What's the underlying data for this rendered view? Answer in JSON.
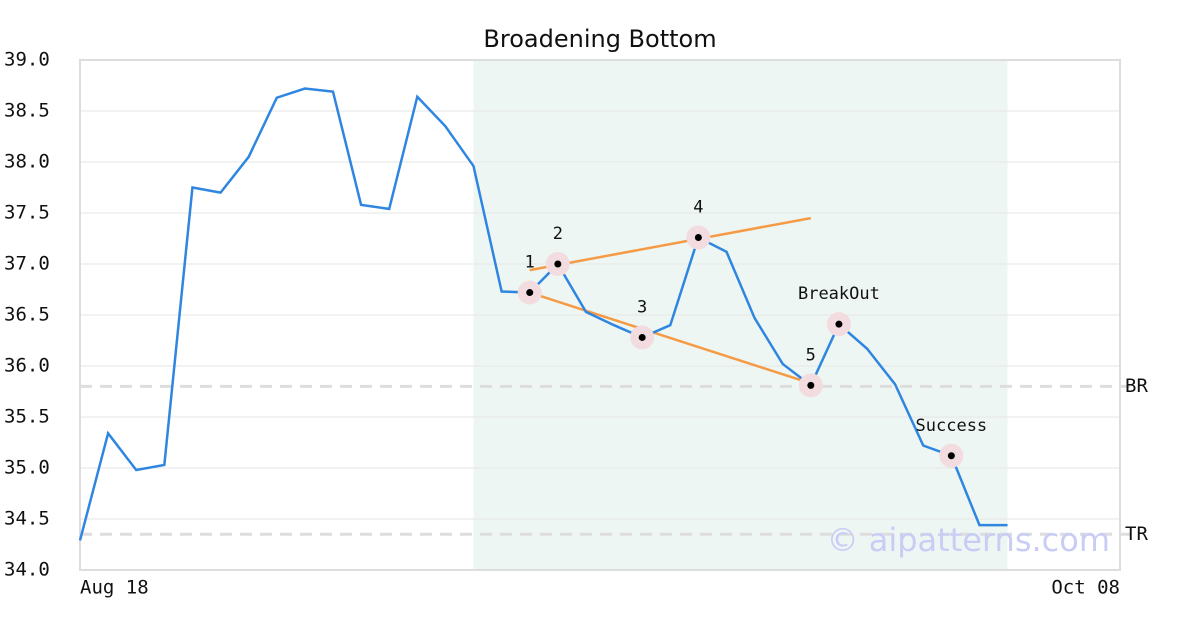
{
  "chart_data": {
    "type": "line",
    "title": "Broadening Bottom",
    "categories": [
      "Aug 18",
      null,
      null,
      null,
      null,
      null,
      null,
      null,
      null,
      null,
      null,
      null,
      null,
      null,
      null,
      null,
      null,
      null,
      null,
      null,
      null,
      null,
      null,
      null,
      null,
      null,
      null,
      null,
      null,
      null,
      null,
      null,
      null,
      null,
      null,
      null,
      null,
      "Oct 08"
    ],
    "series": [
      {
        "color": "#2f86e0",
        "values": [
          34.29,
          35.34,
          34.98,
          35.03,
          37.75,
          37.7,
          38.05,
          38.63,
          38.72,
          38.69,
          37.58,
          37.54,
          38.64,
          38.35,
          37.96,
          36.73,
          36.72,
          37.0,
          36.53,
          36.4,
          36.28,
          36.4,
          37.26,
          37.12,
          36.47,
          36.02,
          35.81,
          36.41,
          36.17,
          35.82,
          35.22,
          35.12,
          34.44,
          34.44,
          null,
          null,
          null,
          null
        ]
      }
    ],
    "ylim": [
      34.0,
      39.0
    ],
    "yticks": [
      {
        "value": 34.0,
        "label": "34.0"
      },
      34.5,
      {
        "value": 35.0,
        "label": "35.0"
      },
      35.5,
      {
        "value": 36.0,
        "label": "36.0"
      },
      36.5,
      {
        "value": 37.0,
        "label": "37.0"
      },
      37.5,
      {
        "value": 38.0,
        "label": "38.0"
      },
      38.5,
      {
        "value": 39.0,
        "label": "39.0"
      }
    ],
    "grid": true,
    "shaded_span": {
      "from": 14,
      "to": 33,
      "color": "#eef6f3"
    },
    "trendlines": [
      {
        "color": "#f59a45",
        "x": [
          16,
          26
        ],
        "values": [
          36.94,
          37.45
        ]
      },
      {
        "color": "#f59a45",
        "x": [
          16,
          26
        ],
        "values": [
          36.72,
          35.83
        ]
      }
    ],
    "points": [
      {
        "label": "1",
        "index": 16
      },
      {
        "label": "2",
        "index": 17
      },
      {
        "label": "3",
        "index": 20
      },
      {
        "label": "4",
        "index": 22
      },
      {
        "label": "5",
        "index": 26
      },
      {
        "label": "BreakOut",
        "index": 27
      },
      {
        "label": "Success",
        "index": 31
      }
    ],
    "levels": [
      {
        "label": "BR",
        "value": 35.8
      },
      {
        "label": "TR",
        "value": 34.35
      }
    ],
    "watermark": "© aipatterns.com"
  }
}
